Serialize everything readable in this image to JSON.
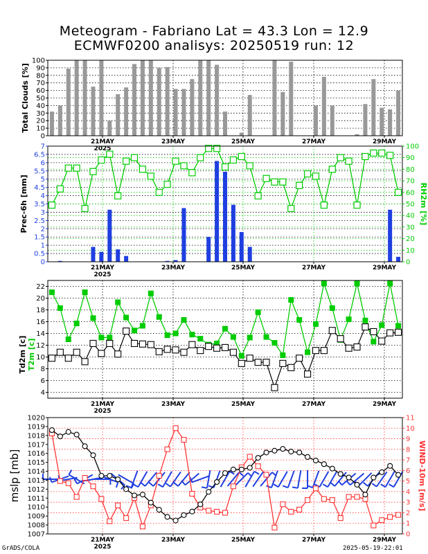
{
  "title_line1": "Meteogram - Fabriano Lat = 43.3 Lon = 12.9",
  "title_line2": "ECMWF0200 analisys: 20250519 run: 12",
  "footer_left": "GrADS/COLA",
  "footer_right": "2025-05-19-22:01",
  "colors": {
    "cloud_bar": "#999999",
    "precip_bar": "#1f3fe0",
    "rh": "#00cc00",
    "t2m": "#00cc00",
    "td2m": "#000000",
    "mslp": "#000000",
    "wind": "#ff3333",
    "barbs": "#1f3fe0"
  },
  "chart_data": [
    {
      "type": "bar",
      "name": "clouds",
      "ylabel": "Total Clouds [%]",
      "ylim": [
        0,
        100
      ],
      "yticks": [
        "0",
        "10",
        "20",
        "30",
        "40",
        "50",
        "60",
        "70",
        "80",
        "90",
        "100"
      ],
      "xtick_labels": [
        "21MAY\n2025",
        "23MAY",
        "25MAY",
        "27MAY",
        "29MAY"
      ],
      "values": [
        32,
        40,
        89,
        100,
        100,
        65,
        100,
        20,
        55,
        64,
        95,
        100,
        100,
        90,
        91,
        62,
        62,
        75,
        100,
        100,
        94,
        32,
        0,
        4,
        54,
        0,
        0,
        100,
        58,
        98,
        0,
        0,
        40,
        78,
        40,
        0,
        0,
        2,
        42,
        75,
        37,
        35,
        60
      ]
    },
    {
      "type": "bar+line",
      "name": "precip_rh",
      "ylabel": "Prec-6h [mm]",
      "y2label": "RH2m [%]",
      "ylim": [
        0,
        7
      ],
      "y2lim": [
        0,
        100
      ],
      "yticks": [
        "0",
        "0.5",
        "1",
        "1.5",
        "2",
        "2.5",
        "3",
        "3.5",
        "4",
        "4.5",
        "5",
        "5.5",
        "6",
        "6.5",
        "7"
      ],
      "y2ticks": [
        "0",
        "10",
        "20",
        "30",
        "40",
        "50",
        "60",
        "70",
        "80",
        "90",
        "100"
      ],
      "precip": [
        0,
        0.05,
        0,
        0,
        0,
        0.9,
        0.6,
        3.15,
        0.75,
        0.35,
        0,
        0,
        0,
        0,
        0.05,
        0.1,
        3.25,
        0,
        0,
        1.5,
        6.1,
        5.45,
        3.45,
        1.8,
        0.9,
        0,
        0,
        0,
        0,
        0,
        0,
        0,
        0,
        0,
        0,
        0,
        0,
        0,
        0,
        0,
        0,
        3.15,
        0.3
      ],
      "rh": [
        49,
        63,
        81,
        81,
        46,
        78,
        88,
        93,
        57,
        87,
        90,
        80,
        74,
        60,
        67,
        87,
        83,
        77,
        90,
        98,
        98,
        82,
        88,
        91,
        83,
        57,
        72,
        69,
        69,
        46,
        66,
        76,
        74,
        49,
        80,
        90,
        87,
        49,
        91,
        94,
        94,
        92,
        60
      ]
    },
    {
      "type": "line",
      "name": "temps",
      "ylabel1": "Td2m [c]",
      "ylabel2": "T2m [c]",
      "ylim": [
        3,
        23
      ],
      "yticks": [
        "4",
        "6",
        "8",
        "10",
        "12",
        "14",
        "16",
        "18",
        "20",
        "22"
      ],
      "t2m": [
        21,
        18.3,
        13,
        15.7,
        21,
        16.6,
        13.3,
        13.3,
        19.3,
        16.7,
        14.5,
        15.3,
        20.8,
        16.8,
        13.7,
        14,
        16.3,
        13.8,
        13.1,
        12.1,
        12.3,
        14.8,
        13.4,
        10.2,
        13.3,
        17.6,
        13.4,
        12.4,
        10.3,
        19.7,
        16.3,
        10.8,
        15.6,
        22.5,
        18.3,
        12.9,
        16.4,
        22.5,
        16.2,
        12.6,
        15.4,
        22.5,
        15.3
      ],
      "td2m": [
        9.8,
        10.8,
        9.8,
        10.8,
        9.2,
        12.3,
        10.6,
        12.3,
        10.5,
        14.4,
        12.3,
        12.2,
        12.1,
        10.9,
        11.3,
        11.2,
        10.8,
        12.1,
        11.1,
        11.8,
        11.5,
        11.6,
        10.8,
        8.9,
        9.8,
        9.1,
        9.1,
        4.8,
        8.9,
        8.2,
        9.8,
        7.1,
        11.1,
        11.1,
        14.5,
        13.1,
        11.5,
        11.7,
        15.1,
        14.3,
        12.7,
        14.1,
        14.2
      ]
    },
    {
      "type": "line",
      "name": "mslp_wind",
      "ylabel": "mslp [mb]",
      "y2label": "WIND-10m [m/s]",
      "ylim": [
        1007,
        1020
      ],
      "y2lim": [
        0,
        11
      ],
      "yticks": [
        "1007",
        "1008",
        "1009",
        "1010",
        "1011",
        "1012",
        "1013",
        "1014",
        "1015",
        "1016",
        "1017",
        "1018",
        "1019",
        "1020"
      ],
      "y2ticks": [
        "0",
        "1",
        "2",
        "3",
        "4",
        "5",
        "6",
        "7",
        "8",
        "9",
        "10",
        "11"
      ],
      "mslp": [
        1018.6,
        1017.9,
        1018.4,
        1018.1,
        1016.8,
        1015.8,
        1013.5,
        1013.5,
        1013.1,
        1012.0,
        1011.3,
        1011.4,
        1010.5,
        1009.7,
        1008.9,
        1008.5,
        1009.1,
        1009.5,
        1010.3,
        1011.7,
        1012.8,
        1013.8,
        1014.2,
        1014.2,
        1014.4,
        1015.5,
        1016.1,
        1016.3,
        1016.5,
        1016.2,
        1016.1,
        1015.6,
        1015.2,
        1014.8,
        1014.3,
        1013.7,
        1013.3,
        1012.5,
        1011.4,
        1013.3,
        1013.9,
        1014.6,
        1013.6
      ],
      "wind": [
        9.5,
        5,
        4.8,
        3.5,
        5.3,
        4.5,
        3.3,
        1.2,
        2.7,
        1.5,
        3.4,
        0.7,
        2.7,
        5.5,
        8,
        10,
        8.9,
        3.8,
        2.5,
        2.2,
        2.1,
        2,
        4.5,
        6.3,
        7.3,
        6.4,
        5.6,
        0.6,
        2.8,
        2.1,
        2.3,
        3.2,
        4.3,
        3.3,
        3.2,
        1.5,
        3.5,
        3.5,
        3.3,
        0.8,
        1.3,
        1.6,
        1.8
      ],
      "barb_dirs_deg": [
        270,
        250,
        260,
        300,
        240,
        260,
        90,
        110,
        130,
        120,
        200,
        210,
        220,
        220,
        210,
        215,
        220,
        230,
        250,
        190,
        200,
        30,
        40,
        45,
        30,
        35,
        40,
        200,
        210,
        200,
        190,
        180,
        200,
        210,
        210,
        220,
        230,
        230,
        225,
        220,
        215,
        210,
        210
      ]
    }
  ]
}
